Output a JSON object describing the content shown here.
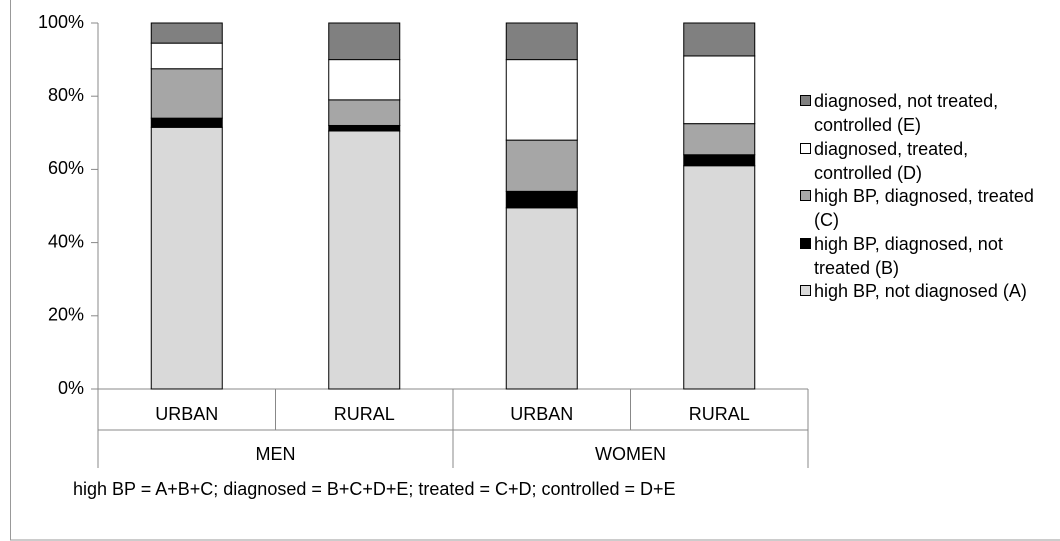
{
  "chart_data": {
    "type": "stacked_bar",
    "categories": [
      "URBAN",
      "RURAL",
      "URBAN",
      "RURAL"
    ],
    "groups": [
      "MEN",
      "WOMEN"
    ],
    "series": [
      {
        "name": "high BP, not diagnosed (A)",
        "color": "#d9d9d9",
        "values": [
          71.5,
          70.5,
          49.5,
          61
        ]
      },
      {
        "name": "high BP, diagnosed, not treated (B)",
        "color": "#000000",
        "values": [
          2.5,
          1.5,
          4.5,
          3
        ]
      },
      {
        "name": "high BP, diagnosed, treated (C)",
        "color": "#a6a6a6",
        "values": [
          13.5,
          7,
          14,
          8.5
        ]
      },
      {
        "name": "diagnosed, treated, controlled (D)",
        "color": "#ffffff",
        "values": [
          7,
          11,
          22,
          18.5
        ]
      },
      {
        "name": "diagnosed, not treated, controlled (E)",
        "color": "#808080",
        "values": [
          5.5,
          10,
          10,
          9
        ]
      }
    ],
    "ylim": [
      0,
      100
    ],
    "yticks": [
      {
        "value": 0,
        "label": "0%"
      },
      {
        "value": 20,
        "label": "20%"
      },
      {
        "value": 40,
        "label": "40%"
      },
      {
        "value": 60,
        "label": "60%"
      },
      {
        "value": 80,
        "label": "80%"
      },
      {
        "value": 100,
        "label": "100%"
      }
    ],
    "legend": "right",
    "note": "high BP = A+B+C; diagnosed = B+C+D+E; treated = C+D; controlled = D+E"
  }
}
